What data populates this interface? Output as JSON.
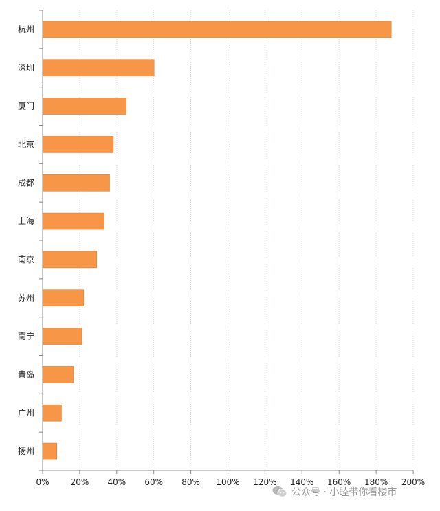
{
  "chart_data": {
    "type": "bar",
    "orientation": "horizontal",
    "categories": [
      "杭州",
      "深圳",
      "厦门",
      "北京",
      "成都",
      "上海",
      "南京",
      "苏州",
      "南宁",
      "青岛",
      "广州",
      "扬州"
    ],
    "values": [
      188,
      60,
      45,
      38,
      36,
      33,
      29,
      22,
      21,
      16.5,
      10,
      7.5
    ],
    "unit": "%",
    "xlim": [
      0,
      200
    ],
    "xticks": [
      "0%",
      "20%",
      "40%",
      "60%",
      "80%",
      "100%",
      "120%",
      "140%",
      "160%",
      "180%",
      "200%"
    ],
    "grid": "vertical",
    "bar_color": "#F79646",
    "title": "",
    "xlabel": "",
    "ylabel": ""
  },
  "watermark": {
    "text": "公众号 · 小睦带你看楼市",
    "icon": "wechat-icon"
  }
}
